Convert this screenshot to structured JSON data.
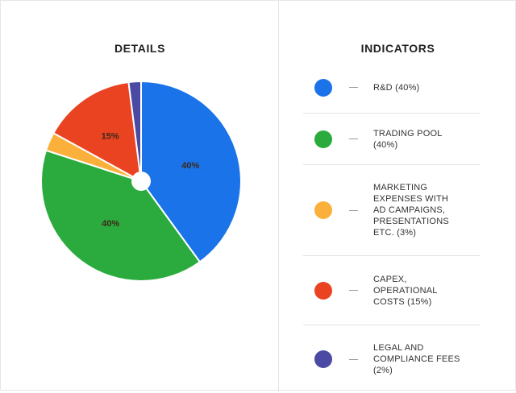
{
  "details": {
    "title": "DETAILS"
  },
  "indicators": {
    "title": "INDICATORS"
  },
  "chart_data": {
    "type": "pie",
    "title": "DETAILS",
    "slices": [
      {
        "key": "rd",
        "value": 40,
        "data_label": "40%",
        "color": "#1a73e8"
      },
      {
        "key": "trading-pool",
        "value": 40,
        "data_label": "40%",
        "color": "#2bab3d"
      },
      {
        "key": "marketing",
        "value": 3,
        "data_label": "",
        "color": "#fbb03b"
      },
      {
        "key": "capex",
        "value": 15,
        "data_label": "15%",
        "color": "#ea4322"
      },
      {
        "key": "legal",
        "value": 2,
        "data_label": "",
        "color": "#4a4aa5"
      }
    ],
    "legend": {
      "title": "INDICATORS",
      "placement": "right",
      "items": [
        {
          "key": "rd",
          "label": "R&D (40%)",
          "color": "#1a73e8"
        },
        {
          "key": "trading-pool",
          "label": "TRADING POOL (40%)",
          "color": "#2bab3d"
        },
        {
          "key": "marketing",
          "label": "MARKETING EXPENSES WITH AD CAMPAIGNS, PRESENTATIONS ETC. (3%)",
          "color": "#fbb03b"
        },
        {
          "key": "capex",
          "label": "CAPEX, OPERATIONAL COSTS (15%)",
          "color": "#ea4322"
        },
        {
          "key": "legal",
          "label": "LEGAL AND COMPLIANCE FEES (2%)",
          "color": "#4a4aa5"
        }
      ]
    }
  }
}
